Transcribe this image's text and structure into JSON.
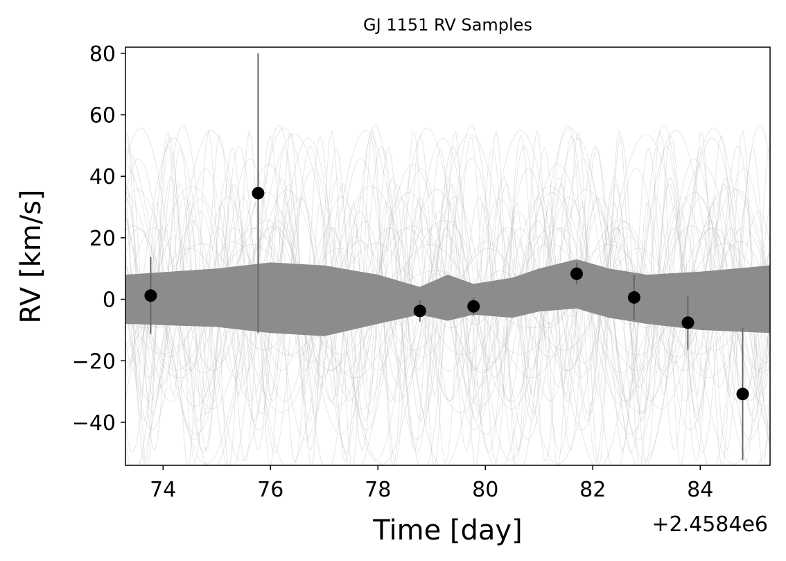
{
  "chart_data": {
    "type": "scatter",
    "title": "GJ 1151 RV Samples",
    "xlabel": "Time [day]",
    "ylabel": "RV [km/s]",
    "x_offset_label": "+2.4584e6",
    "xlim": [
      73.3,
      85.3
    ],
    "ylim": [
      -54,
      82
    ],
    "xticks": [
      74,
      76,
      78,
      80,
      82,
      84
    ],
    "xtick_labels": [
      "74",
      "76",
      "78",
      "80",
      "82",
      "84"
    ],
    "yticks": [
      -40,
      -20,
      0,
      20,
      40,
      60,
      80
    ],
    "ytick_labels": [
      "−40",
      "−20",
      "0",
      "20",
      "40",
      "60",
      "80"
    ],
    "grid": false,
    "legend": "none",
    "colors": {
      "points": "#000000",
      "errorbars": "#666666",
      "samples_band": "#8c8c8c",
      "sample_curves": "#bbbbbb"
    },
    "series": [
      {
        "x": [
          73.77,
          75.77,
          78.78,
          79.78,
          81.7,
          82.77,
          83.77,
          84.79
        ],
        "y": [
          1.2,
          34.5,
          -3.8,
          -2.3,
          8.3,
          0.6,
          -7.6,
          -30.8
        ],
        "yerr": [
          12.5,
          45.5,
          3.5,
          3.0,
          3.5,
          7.2,
          8.8,
          21.5
        ]
      }
    ],
    "band": {
      "x": [
        73.3,
        75.0,
        76.0,
        77.0,
        78.0,
        78.78,
        79.3,
        79.78,
        80.5,
        81.0,
        81.7,
        82.3,
        83.0,
        84.0,
        85.3
      ],
      "upper": [
        8,
        10,
        12,
        11,
        8,
        4,
        8,
        5,
        7,
        10,
        13,
        10,
        8,
        9,
        11
      ],
      "lower": [
        -8,
        -9,
        -11,
        -12,
        -8,
        -5,
        -7,
        -5,
        -6,
        -4,
        -3,
        -6,
        -8,
        -10,
        -11
      ]
    }
  }
}
